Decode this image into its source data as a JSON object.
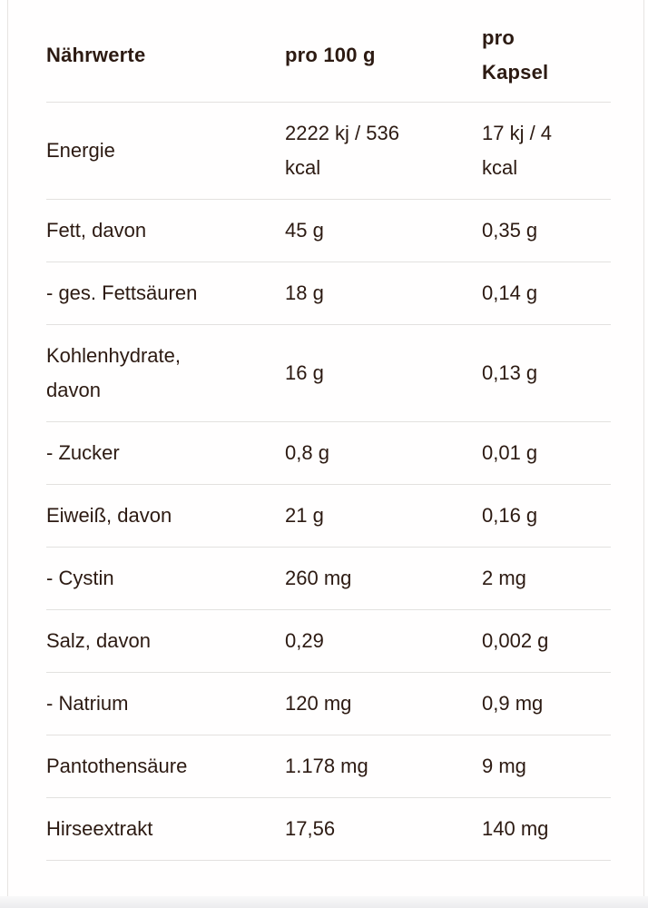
{
  "table": {
    "columns": [
      "Nährwerte",
      "pro 100 g",
      "pro Kapsel"
    ],
    "rows": [
      {
        "label": "Energie",
        "per_100g": "2222 kj / 536 kcal",
        "per_capsule": "17 kj / 4 kcal"
      },
      {
        "label": "Fett, davon",
        "per_100g": "45 g",
        "per_capsule": "0,35 g"
      },
      {
        "label": "- ges. Fettsäuren",
        "per_100g": "18 g",
        "per_capsule": "0,14 g"
      },
      {
        "label": "Kohlenhydrate, davon",
        "per_100g": "16 g",
        "per_capsule": "0,13 g"
      },
      {
        "label": "- Zucker",
        "per_100g": "0,8 g",
        "per_capsule": "0,01 g"
      },
      {
        "label": "Eiweiß, davon",
        "per_100g": "21 g",
        "per_capsule": "0,16 g"
      },
      {
        "label": "- Cystin",
        "per_100g": "260 mg",
        "per_capsule": "2 mg"
      },
      {
        "label": "Salz, davon",
        "per_100g": "0,29",
        "per_capsule": "0,002 g"
      },
      {
        "label": "- Natrium",
        "per_100g": "120 mg",
        "per_capsule": "0,9 mg"
      },
      {
        "label": "Pantothensäure",
        "per_100g": "1.178 mg",
        "per_capsule": "9 mg"
      },
      {
        "label": "Hirseextrakt",
        "per_100g": "17,56",
        "per_capsule": "140 mg"
      }
    ]
  },
  "colors": {
    "text": "#2c1a12",
    "divider": "#e3e1df",
    "card_border": "#e6e4e2",
    "background": "#ffffff",
    "bottom_edge": "#ececee"
  }
}
